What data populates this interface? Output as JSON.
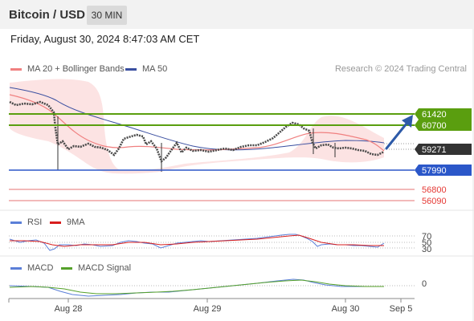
{
  "header": {
    "pair_title": "Bitcoin / USD",
    "interval": "30 MIN"
  },
  "datetime": "Friday, August 30, 2024 8:47:03 AM CET",
  "legend": {
    "ma20_bollinger": "MA 20 + Bollinger Bands",
    "ma50": "MA 50",
    "credit": "Research © 2024 Trading Central"
  },
  "price_levels": {
    "resistance_1": "61420",
    "resistance_2": "60700",
    "current_price": "59271",
    "pivot": "57990",
    "support_1": "56800",
    "support_2": "56090"
  },
  "rsi": {
    "label": "RSI",
    "ma_label": "9MA",
    "levels": [
      "70",
      "50",
      "30"
    ]
  },
  "macd": {
    "label": "MACD",
    "signal_label": "MACD Signal",
    "zero_label": "0"
  },
  "x_axis": {
    "ticks": [
      "Aug 28",
      "Aug 29",
      "Aug 30",
      "Sep 5"
    ]
  },
  "colors": {
    "resistance": "#5a9e0f",
    "pivot": "#2b57c9",
    "support": "#e53935",
    "current": "#333333",
    "arrow": "#2d5aa8",
    "ma20": "#f08080",
    "ma50": "#3a4fa0",
    "bollinger_fill": "#fbdede",
    "rsi": "#5b7fd8",
    "rsi_ma": "#d81e1e",
    "macd": "#5b7fd8",
    "macd_signal": "#55a12a"
  }
}
